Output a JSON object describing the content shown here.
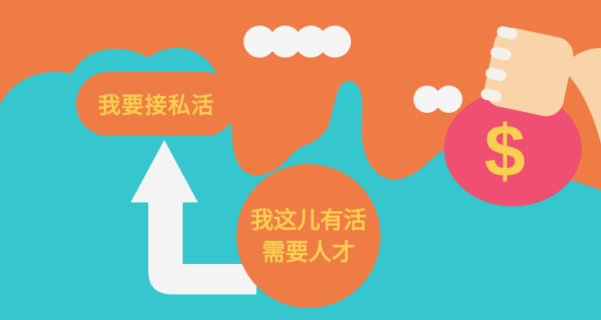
{
  "top_bubble": {
    "label": "我要接私活"
  },
  "bottom_bubble": {
    "line1": "我这儿有活",
    "line2": "需要人才"
  },
  "money_bag": {
    "symbol": "$"
  },
  "colors": {
    "orange": "#F07C45",
    "teal": "#35C6CE",
    "yellow_text": "#F8CF4F",
    "bag_pink": "#EF5071",
    "white_arrow": "#F4F4F4",
    "skin": "#F9D4A8"
  },
  "icons": [
    "up-arrow-icon",
    "money-bag-icon",
    "hand-icon",
    "cloud-icon"
  ]
}
